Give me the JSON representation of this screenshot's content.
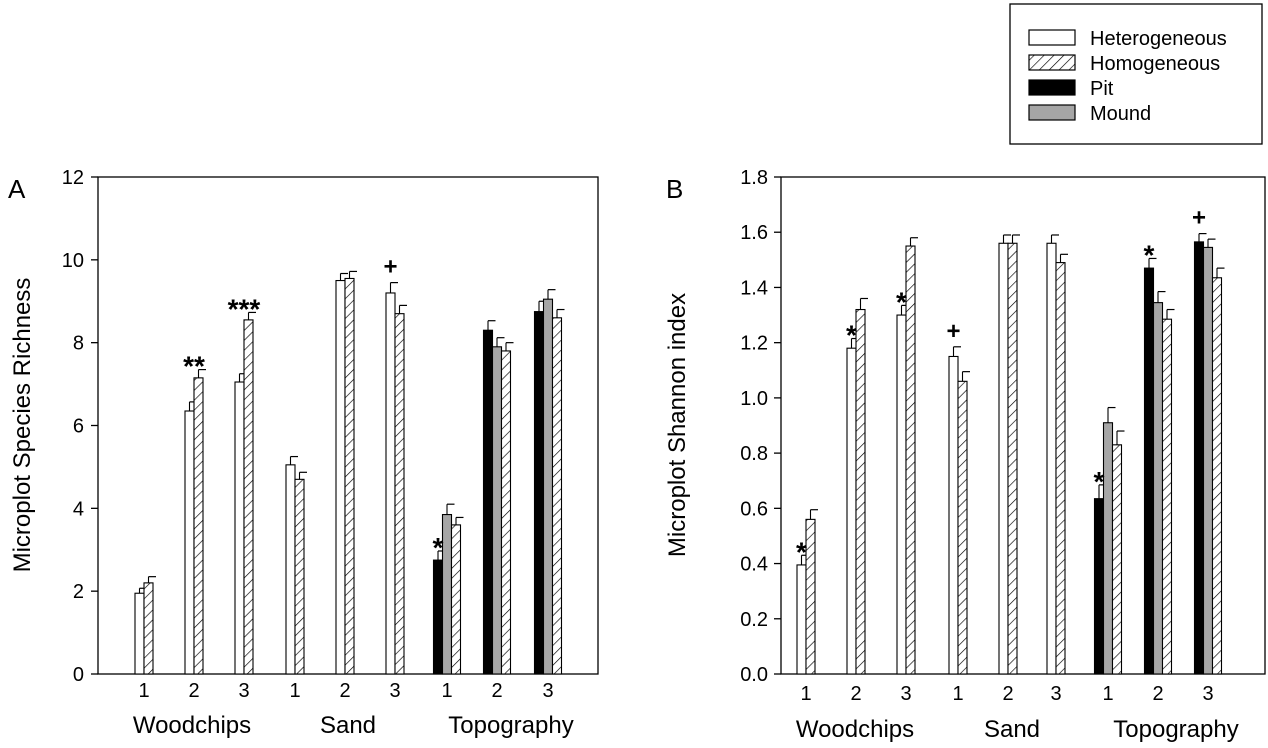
{
  "legend": {
    "position": "top-right",
    "items": [
      {
        "label": "Heterogeneous",
        "style": "open"
      },
      {
        "label": "Homogeneous",
        "style": "hatched"
      },
      {
        "label": "Pit",
        "style": "black"
      },
      {
        "label": "Mound",
        "style": "gray"
      }
    ]
  },
  "colors": {
    "open": "#ffffff",
    "black": "#000000",
    "gray": "#a6a6a6",
    "hatch": "#000000"
  },
  "chart_data": [
    {
      "type": "bar",
      "panel_label": "A",
      "ylabel": "Microplot Species Richness",
      "xlabel": "",
      "ylim": [
        0,
        12
      ],
      "yticks": [
        0,
        2,
        4,
        6,
        8,
        10,
        12
      ],
      "ytick_labels": [
        "0",
        "2",
        "4",
        "6",
        "8",
        "10",
        "12"
      ],
      "group_labels": [
        "Woodchips",
        "Sand",
        "Topography"
      ],
      "groups": [
        {
          "name": "Woodchips",
          "categories": [
            {
              "tick": "1",
              "bars": [
                {
                  "series": "Heterogeneous",
                  "value": 1.95,
                  "err": 0.12
                },
                {
                  "series": "Homogeneous",
                  "value": 2.2,
                  "err": 0.15
                }
              ],
              "annotation": ""
            },
            {
              "tick": "2",
              "bars": [
                {
                  "series": "Heterogeneous",
                  "value": 6.35,
                  "err": 0.22
                },
                {
                  "series": "Homogeneous",
                  "value": 7.15,
                  "err": 0.2
                }
              ],
              "annotation": "**"
            },
            {
              "tick": "3",
              "bars": [
                {
                  "series": "Heterogeneous",
                  "value": 7.05,
                  "err": 0.2
                },
                {
                  "series": "Homogeneous",
                  "value": 8.55,
                  "err": 0.18
                }
              ],
              "annotation": "***"
            }
          ]
        },
        {
          "name": "Sand",
          "categories": [
            {
              "tick": "1",
              "bars": [
                {
                  "series": "Heterogeneous",
                  "value": 5.05,
                  "err": 0.2
                },
                {
                  "series": "Homogeneous",
                  "value": 4.7,
                  "err": 0.17
                }
              ],
              "annotation": ""
            },
            {
              "tick": "2",
              "bars": [
                {
                  "series": "Heterogeneous",
                  "value": 9.5,
                  "err": 0.17
                },
                {
                  "series": "Homogeneous",
                  "value": 9.55,
                  "err": 0.17
                }
              ],
              "annotation": ""
            },
            {
              "tick": "3",
              "bars": [
                {
                  "series": "Heterogeneous",
                  "value": 9.2,
                  "err": 0.25
                },
                {
                  "series": "Homogeneous",
                  "value": 8.7,
                  "err": 0.2
                }
              ],
              "annotation": "+"
            }
          ]
        },
        {
          "name": "Topography",
          "categories": [
            {
              "tick": "1",
              "bars": [
                {
                  "series": "Pit",
                  "value": 2.75,
                  "err": 0.22
                },
                {
                  "series": "Mound",
                  "value": 3.85,
                  "err": 0.25
                },
                {
                  "series": "Homogeneous",
                  "value": 3.6,
                  "err": 0.18
                }
              ],
              "annotation": "*"
            },
            {
              "tick": "2",
              "bars": [
                {
                  "series": "Pit",
                  "value": 8.3,
                  "err": 0.23
                },
                {
                  "series": "Mound",
                  "value": 7.9,
                  "err": 0.22
                },
                {
                  "series": "Homogeneous",
                  "value": 7.8,
                  "err": 0.2
                }
              ],
              "annotation": ""
            },
            {
              "tick": "3",
              "bars": [
                {
                  "series": "Pit",
                  "value": 8.75,
                  "err": 0.25
                },
                {
                  "series": "Mound",
                  "value": 9.05,
                  "err": 0.23
                },
                {
                  "series": "Homogeneous",
                  "value": 8.6,
                  "err": 0.2
                }
              ],
              "annotation": ""
            }
          ]
        }
      ]
    },
    {
      "type": "bar",
      "panel_label": "B",
      "ylabel": "Microplot Shannon index",
      "xlabel": "",
      "ylim": [
        0,
        1.8
      ],
      "yticks": [
        0,
        0.2,
        0.4,
        0.6,
        0.8,
        1.0,
        1.2,
        1.4,
        1.6,
        1.8
      ],
      "ytick_labels": [
        "0.0",
        "0.2",
        "0.4",
        "0.6",
        "0.8",
        "1.0",
        "1.2",
        "1.4",
        "1.6",
        "1.8"
      ],
      "group_labels": [
        "Woodchips",
        "Sand",
        "Topography"
      ],
      "groups": [
        {
          "name": "Woodchips",
          "categories": [
            {
              "tick": "1",
              "bars": [
                {
                  "series": "Heterogeneous",
                  "value": 0.395,
                  "err": 0.035
                },
                {
                  "series": "Homogeneous",
                  "value": 0.56,
                  "err": 0.035
                }
              ],
              "annotation": "*"
            },
            {
              "tick": "2",
              "bars": [
                {
                  "series": "Heterogeneous",
                  "value": 1.18,
                  "err": 0.035
                },
                {
                  "series": "Homogeneous",
                  "value": 1.32,
                  "err": 0.04
                }
              ],
              "annotation": "*"
            },
            {
              "tick": "3",
              "bars": [
                {
                  "series": "Heterogeneous",
                  "value": 1.3,
                  "err": 0.035
                },
                {
                  "series": "Homogeneous",
                  "value": 1.55,
                  "err": 0.03
                }
              ],
              "annotation": "*"
            }
          ]
        },
        {
          "name": "Sand",
          "categories": [
            {
              "tick": "1",
              "bars": [
                {
                  "series": "Heterogeneous",
                  "value": 1.15,
                  "err": 0.035
                },
                {
                  "series": "Homogeneous",
                  "value": 1.06,
                  "err": 0.035
                }
              ],
              "annotation": "+"
            },
            {
              "tick": "2",
              "bars": [
                {
                  "series": "Heterogeneous",
                  "value": 1.56,
                  "err": 0.03
                },
                {
                  "series": "Homogeneous",
                  "value": 1.56,
                  "err": 0.03
                }
              ],
              "annotation": ""
            },
            {
              "tick": "3",
              "bars": [
                {
                  "series": "Heterogeneous",
                  "value": 1.56,
                  "err": 0.03
                },
                {
                  "series": "Homogeneous",
                  "value": 1.49,
                  "err": 0.03
                }
              ],
              "annotation": ""
            }
          ]
        },
        {
          "name": "Topography",
          "categories": [
            {
              "tick": "1",
              "bars": [
                {
                  "series": "Pit",
                  "value": 0.635,
                  "err": 0.05
                },
                {
                  "series": "Mound",
                  "value": 0.91,
                  "err": 0.055
                },
                {
                  "series": "Homogeneous",
                  "value": 0.83,
                  "err": 0.05
                }
              ],
              "annotation": "*"
            },
            {
              "tick": "2",
              "bars": [
                {
                  "series": "Pit",
                  "value": 1.47,
                  "err": 0.035
                },
                {
                  "series": "Mound",
                  "value": 1.345,
                  "err": 0.04
                },
                {
                  "series": "Homogeneous",
                  "value": 1.285,
                  "err": 0.035
                }
              ],
              "annotation": "*"
            },
            {
              "tick": "3",
              "bars": [
                {
                  "series": "Pit",
                  "value": 1.565,
                  "err": 0.03
                },
                {
                  "series": "Mound",
                  "value": 1.545,
                  "err": 0.03
                },
                {
                  "series": "Homogeneous",
                  "value": 1.435,
                  "err": 0.035
                }
              ],
              "annotation": "+"
            }
          ]
        }
      ]
    }
  ]
}
